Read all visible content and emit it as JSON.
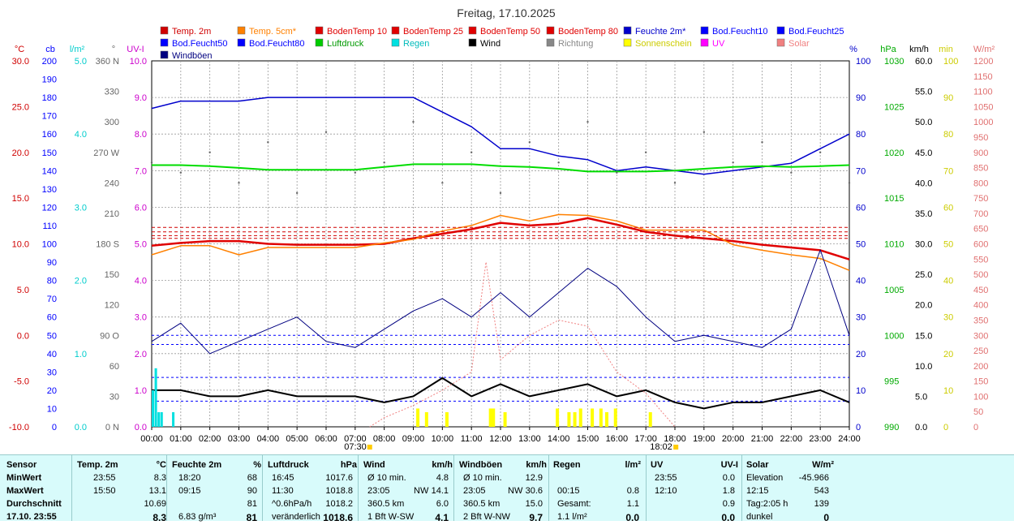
{
  "chart_data": {
    "type": "line",
    "title": "Freitag, 17.10.2025",
    "x_ticks": [
      "00:00",
      "01:00",
      "02:00",
      "03:00",
      "04:00",
      "05:00",
      "06:00",
      "07:00",
      "08:00",
      "09:00",
      "10:00",
      "11:00",
      "12:00",
      "13:00",
      "14:00",
      "15:00",
      "16:00",
      "17:00",
      "18:00",
      "19:00",
      "20:00",
      "21:00",
      "22:00",
      "23:00",
      "24:00"
    ],
    "sunrise": "07:30",
    "sunset": "18:02",
    "axes_left": [
      {
        "unit": "°C",
        "color": "#d00000",
        "labels": [
          "30.0",
          "25.0",
          "20.0",
          "15.0",
          "10.0",
          "5.0",
          "0.0",
          "-5.0",
          "-10.0"
        ]
      },
      {
        "unit": "cb",
        "color": "#0000ff",
        "labels": [
          "200",
          "190",
          "180",
          "170",
          "160",
          "150",
          "140",
          "130",
          "120",
          "110",
          "100",
          "90",
          "80",
          "70",
          "60",
          "50",
          "40",
          "30",
          "20",
          "10",
          "0"
        ]
      },
      {
        "unit": "l/m²",
        "color": "#00cccc",
        "labels": [
          "5.0",
          "4.0",
          "3.0",
          "2.0",
          "1.0",
          "0.0"
        ]
      },
      {
        "unit": "°",
        "color": "#666666",
        "labels": [
          "360 N",
          "330",
          "300",
          "270 W",
          "240",
          "210",
          "180 S",
          "150",
          "120",
          "90 O",
          "60",
          "30",
          "0 N"
        ]
      },
      {
        "unit": "UV-I",
        "color": "#cc00cc",
        "labels": [
          "10.0",
          "9.0",
          "8.0",
          "7.0",
          "6.0",
          "5.0",
          "4.0",
          "3.0",
          "2.0",
          "1.0",
          "0.0"
        ]
      }
    ],
    "axes_right": [
      {
        "unit": "%",
        "color": "#0000cc",
        "labels": [
          "100",
          "90",
          "80",
          "70",
          "60",
          "50",
          "40",
          "30",
          "20",
          "10",
          "0"
        ]
      },
      {
        "unit": "hPa",
        "color": "#00aa00",
        "labels": [
          "1030",
          "1025",
          "1020",
          "1015",
          "1010",
          "1005",
          "1000",
          "995",
          "990"
        ]
      },
      {
        "unit": "km/h",
        "color": "#000000",
        "labels": [
          "60.0",
          "55.0",
          "50.0",
          "45.0",
          "40.0",
          "35.0",
          "30.0",
          "25.0",
          "20.0",
          "15.0",
          "10.0",
          "5.0",
          "0.0"
        ]
      },
      {
        "unit": "min",
        "color": "#dddd00",
        "labels": [
          "100",
          "90",
          "80",
          "70",
          "60",
          "50",
          "40",
          "30",
          "20",
          "10",
          "0"
        ]
      },
      {
        "unit": "W/m²",
        "color": "#e07070",
        "labels": [
          "1200",
          "1150",
          "1100",
          "1050",
          "1000",
          "950",
          "900",
          "850",
          "800",
          "750",
          "700",
          "650",
          "600",
          "550",
          "500",
          "450",
          "400",
          "350",
          "300",
          "250",
          "200",
          "150",
          "100",
          "50",
          "0"
        ]
      }
    ],
    "legend": [
      {
        "name": "Temp. 2m",
        "color": "#d00000"
      },
      {
        "name": "Temp. 5cm*",
        "color": "#ff8000"
      },
      {
        "name": "BodenTemp 10",
        "color": "#e00000"
      },
      {
        "name": "BodenTemp 25",
        "color": "#e00000"
      },
      {
        "name": "BodenTemp 50",
        "color": "#e00000"
      },
      {
        "name": "BodenTemp 80",
        "color": "#e00000"
      },
      {
        "name": "Feuchte 2m*",
        "color": "#0000cc"
      },
      {
        "name": "Bod.Feucht10",
        "color": "#0000ff"
      },
      {
        "name": "Bod.Feucht25",
        "color": "#0000ff"
      },
      {
        "name": "Bod.Feucht50",
        "color": "#0000ff"
      },
      {
        "name": "Bod.Feucht80",
        "color": "#0000ff"
      },
      {
        "name": "Luftdruck",
        "color": "#00cc00"
      },
      {
        "name": "Regen",
        "color": "#00e0e0"
      },
      {
        "name": "Wind",
        "color": "#000000"
      },
      {
        "name": "Richtung",
        "color": "#888888"
      },
      {
        "name": "Sonnenschein",
        "color": "#ffff00"
      },
      {
        "name": "UV",
        "color": "#ff00ff"
      },
      {
        "name": "Solar",
        "color": "#f08080"
      },
      {
        "name": "Windböen",
        "color": "#000080"
      }
    ],
    "series": [
      {
        "name": "Temp. 2m",
        "unit": "°C",
        "x": [
          0,
          1,
          2,
          3,
          4,
          5,
          6,
          7,
          8,
          9,
          10,
          11,
          12,
          13,
          14,
          15,
          16,
          17,
          18,
          19,
          20,
          21,
          22,
          23,
          24
        ],
        "values": [
          9.8,
          10.1,
          10.3,
          10.3,
          10.0,
          9.9,
          9.9,
          9.9,
          10.0,
          10.6,
          11.1,
          11.6,
          12.3,
          12.0,
          12.2,
          12.8,
          12.1,
          11.3,
          10.9,
          10.6,
          10.3,
          9.9,
          9.6,
          9.3,
          8.3
        ]
      },
      {
        "name": "Temp. 5cm*",
        "unit": "°C",
        "x": [
          0,
          1,
          2,
          3,
          4,
          5,
          6,
          7,
          8,
          9,
          10,
          11,
          12,
          13,
          14,
          15,
          16,
          17,
          18,
          19,
          20,
          21,
          22,
          23,
          24
        ],
        "values": [
          8.8,
          9.8,
          9.8,
          8.8,
          9.6,
          9.6,
          9.6,
          9.6,
          10.1,
          10.5,
          11.4,
          12.0,
          13.1,
          12.5,
          13.2,
          13.1,
          12.5,
          11.5,
          11.5,
          11.5,
          9.9,
          9.3,
          8.8,
          8.4,
          7.1
        ]
      },
      {
        "name": "BodenTemp 10",
        "unit": "°C",
        "x": [
          0,
          24
        ],
        "values": [
          11.3,
          11.3
        ]
      },
      {
        "name": "BodenTemp 25",
        "unit": "°C",
        "x": [
          0,
          24
        ],
        "values": [
          10.9,
          10.9
        ]
      },
      {
        "name": "BodenTemp 50",
        "unit": "°C",
        "x": [
          0,
          24
        ],
        "values": [
          10.6,
          10.6
        ]
      },
      {
        "name": "BodenTemp 80",
        "unit": "°C",
        "x": [
          0,
          24
        ],
        "values": [
          11.8,
          11.8
        ]
      },
      {
        "name": "Feuchte 2m*",
        "unit": "%",
        "x": [
          0,
          1,
          2,
          3,
          4,
          5,
          6,
          7,
          8,
          9,
          10,
          11,
          12,
          13,
          14,
          15,
          16,
          17,
          18,
          19,
          20,
          21,
          22,
          23,
          24
        ],
        "values": [
          87,
          89,
          89,
          89,
          90,
          90,
          90,
          90,
          90,
          90,
          86,
          82,
          76,
          76,
          74,
          73,
          70,
          71,
          70,
          69,
          70,
          71,
          72,
          76,
          80
        ]
      },
      {
        "name": "Bod.Feucht10",
        "unit": "cb",
        "x": [
          0,
          24
        ],
        "values": [
          45,
          45
        ]
      },
      {
        "name": "Bod.Feucht25",
        "unit": "cb",
        "x": [
          0,
          24
        ],
        "values": [
          50,
          50
        ]
      },
      {
        "name": "Bod.Feucht50",
        "unit": "cb",
        "x": [
          0,
          24
        ],
        "values": [
          27,
          27
        ]
      },
      {
        "name": "Bod.Feucht80",
        "unit": "cb",
        "x": [
          0,
          24
        ],
        "values": [
          14,
          14
        ]
      },
      {
        "name": "Luftdruck",
        "unit": "hPa",
        "x": [
          0,
          1,
          2,
          3,
          4,
          5,
          6,
          7,
          8,
          9,
          10,
          11,
          12,
          13,
          14,
          15,
          16,
          17,
          18,
          19,
          20,
          21,
          22,
          23,
          24
        ],
        "values": [
          1018.6,
          1018.6,
          1018.5,
          1018.3,
          1018.1,
          1018.1,
          1018.1,
          1018.1,
          1018.4,
          1018.7,
          1018.7,
          1018.7,
          1018.5,
          1018.4,
          1018.2,
          1017.9,
          1017.9,
          1017.9,
          1018.0,
          1018.2,
          1018.4,
          1018.5,
          1018.4,
          1018.5,
          1018.6
        ]
      },
      {
        "name": "Wind",
        "unit": "km/h",
        "x": [
          0,
          1,
          2,
          3,
          4,
          5,
          6,
          7,
          8,
          9,
          10,
          11,
          12,
          13,
          14,
          15,
          16,
          17,
          18,
          19,
          20,
          21,
          22,
          23,
          24
        ],
        "values": [
          6,
          6,
          5,
          5,
          6,
          5,
          5,
          5,
          4,
          5,
          8,
          5,
          7,
          5,
          6,
          7,
          5,
          6,
          4,
          3,
          4,
          4,
          5,
          6,
          4
        ]
      },
      {
        "name": "Windböen",
        "unit": "km/h",
        "x": [
          0,
          1,
          2,
          3,
          4,
          5,
          6,
          7,
          8,
          9,
          10,
          11,
          12,
          13,
          14,
          15,
          16,
          17,
          18,
          19,
          20,
          21,
          22,
          23,
          24
        ],
        "values": [
          14,
          17,
          12,
          14,
          16,
          18,
          14,
          13,
          16,
          19,
          21,
          18,
          22,
          18,
          22,
          26,
          23,
          18,
          14,
          15,
          14,
          13,
          16,
          29,
          15
        ]
      },
      {
        "name": "Regen",
        "unit": "l/m²",
        "x": [
          0,
          0.1,
          0.2,
          0.3,
          0.7
        ],
        "values": [
          0.5,
          0.8,
          0.2,
          0.2,
          0.2
        ]
      },
      {
        "name": "Sonnenschein",
        "unit": "min",
        "x": [
          9.1,
          9.4,
          10.1,
          11.6,
          11.7,
          12.1,
          13.9,
          14.3,
          14.5,
          14.7,
          15.1,
          15.4,
          15.6,
          15.9,
          17.1
        ],
        "values": [
          5,
          4,
          4,
          5,
          5,
          4,
          5,
          4,
          4,
          5,
          5,
          5,
          4,
          5,
          4
        ]
      },
      {
        "name": "Solar",
        "unit": "W/m²",
        "x": [
          7.5,
          8,
          9,
          10,
          11,
          11.5,
          12,
          13,
          14,
          15,
          16,
          17,
          18
        ],
        "values": [
          0,
          30,
          70,
          120,
          180,
          540,
          220,
          300,
          350,
          330,
          180,
          110,
          0
        ]
      },
      {
        "name": "Richtung",
        "unit": "°",
        "x": [
          0,
          1,
          2,
          3,
          4,
          5,
          6,
          7,
          8,
          9,
          10,
          11,
          12,
          13,
          14,
          15,
          16,
          17,
          18,
          19,
          20,
          21,
          22,
          23,
          24
        ],
        "values": [
          260,
          250,
          270,
          240,
          280,
          230,
          290,
          250,
          260,
          300,
          240,
          270,
          230,
          280,
          260,
          300,
          250,
          270,
          240,
          290,
          260,
          280,
          250,
          270,
          240
        ]
      }
    ]
  },
  "stats": {
    "sensor": {
      "h": "Sensor",
      "rows": [
        "MinWert",
        "MaxWert",
        "Durchschnitt",
        "17.10. 23:55"
      ]
    },
    "temp": {
      "h": "Temp. 2m",
      "u": "°C",
      "rows": [
        [
          "23:55",
          "8.3"
        ],
        [
          "15:50",
          "13.1"
        ],
        [
          "",
          "10.69"
        ],
        [
          "",
          "8.3"
        ]
      ]
    },
    "feuchte": {
      "h": "Feuchte 2m",
      "u": "%",
      "rows": [
        [
          "18:20",
          "68"
        ],
        [
          "09:15",
          "90"
        ],
        [
          "",
          "81"
        ],
        [
          "6.83 g/m³",
          "81"
        ]
      ]
    },
    "luftdruck": {
      "h": "Luftdruck",
      "u": "hPa",
      "rows": [
        [
          "16:45",
          "1017.6"
        ],
        [
          "11:30",
          "1018.8"
        ],
        [
          "^0.6hPa/h",
          "1018.2"
        ],
        [
          "veränderlich",
          "1018.6"
        ]
      ]
    },
    "wind": {
      "h": "Wind",
      "u": "km/h",
      "rows": [
        [
          "Ø 10 min.",
          "",
          "4.8"
        ],
        [
          "23:05",
          "NW",
          "14.1"
        ],
        [
          "360.5 km",
          "",
          "6.0"
        ],
        [
          "1 Bft W-SW",
          "",
          "4.1"
        ]
      ]
    },
    "boeen": {
      "h": "Windböen",
      "u": "km/h",
      "rows": [
        [
          "Ø 10 min.",
          "",
          "12.9"
        ],
        [
          "23:05",
          "NW",
          "30.6"
        ],
        [
          "360.5 km",
          "",
          "15.0"
        ],
        [
          "2 Bft W-NW",
          "",
          "9.7"
        ]
      ]
    },
    "regen": {
      "h": "Regen",
      "u": "l/m²",
      "rows": [
        [
          "",
          ""
        ],
        [
          "00:15",
          "0.8"
        ],
        [
          "Gesamt:",
          "1.1"
        ],
        [
          "1.1 l/m²",
          "0.0"
        ]
      ]
    },
    "uv": {
      "h": "UV",
      "u": "UV-I",
      "rows": [
        [
          "23:55",
          "0.0"
        ],
        [
          "12:10",
          "1.8"
        ],
        [
          "",
          "0.9"
        ],
        [
          "",
          "0.0"
        ]
      ]
    },
    "solar": {
      "h": "Solar",
      "u": "W/m²",
      "rows": [
        [
          "Elevation",
          "-45.966"
        ],
        [
          "12:15",
          "543"
        ],
        [
          "Tag:2:05 h",
          "139"
        ],
        [
          "dunkel",
          "0"
        ]
      ]
    }
  }
}
